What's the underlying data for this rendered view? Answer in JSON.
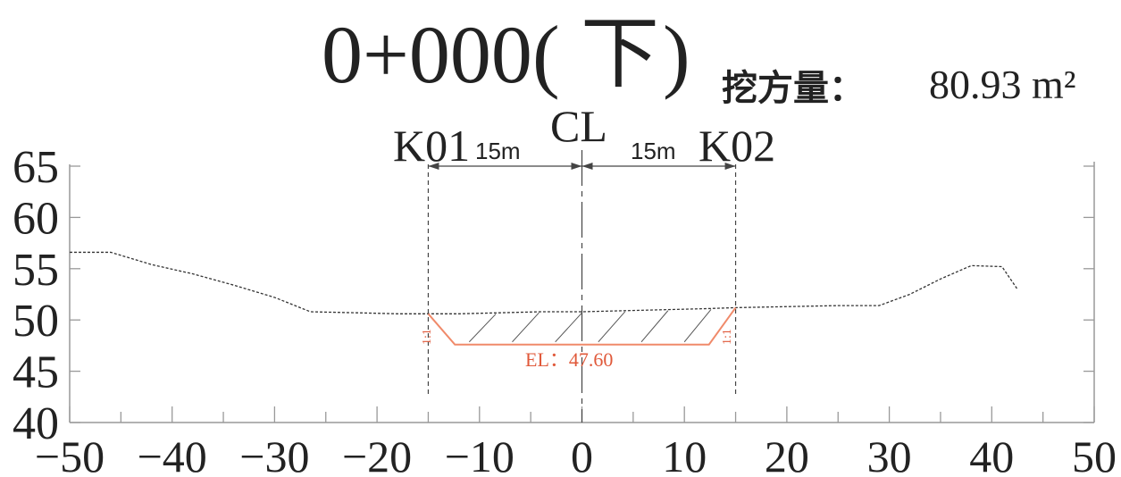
{
  "title": {
    "station": "0+000",
    "direction": "下",
    "volume_label": "挖方量：",
    "volume_value": "80.93 m²"
  },
  "labels": {
    "left_marker": "K01",
    "right_marker": "K02",
    "centerline": "CL",
    "left_width": "15m",
    "right_width": "15m",
    "design_elevation": "EL：47.60",
    "left_slope": "1:1",
    "right_slope": "1:1"
  },
  "colors": {
    "ground": "#333333",
    "design": "#f08a6a",
    "design_text": "#e0593a",
    "frame": "#aaaaaa"
  },
  "chart_data": {
    "type": "line",
    "title": "0+000(下)",
    "xlim": [
      -50,
      50
    ],
    "ylim": [
      40,
      65
    ],
    "x_ticks": [
      -50,
      -40,
      -30,
      -20,
      -10,
      0,
      10,
      20,
      30,
      40,
      50
    ],
    "y_ticks": [
      40,
      45,
      50,
      55,
      60,
      65
    ],
    "x_minor_step": 5,
    "series": [
      {
        "x": [
          -50,
          -46,
          -42,
          -38,
          -34,
          -30,
          -26.5,
          -22,
          -18,
          -15,
          -12,
          -8,
          -4,
          0,
          4,
          8,
          12,
          15,
          20,
          25,
          29,
          32,
          35,
          38,
          41,
          42.5
        ],
        "y": [
          56.6,
          56.6,
          55.4,
          54.5,
          53.4,
          52.2,
          50.8,
          50.7,
          50.6,
          50.6,
          50.6,
          50.7,
          50.8,
          50.8,
          50.9,
          51.0,
          51.1,
          51.2,
          51.3,
          51.4,
          51.4,
          52.5,
          54.0,
          55.3,
          55.2,
          53.0
        ]
      },
      {
        "x": [
          -15,
          -12.4,
          12.4,
          15
        ],
        "y": [
          50.6,
          47.6,
          47.6,
          51.2
        ]
      }
    ],
    "design_elevation": 47.6,
    "left_offset": -15,
    "right_offset": 15,
    "centerline_x": 0,
    "grid": false
  }
}
